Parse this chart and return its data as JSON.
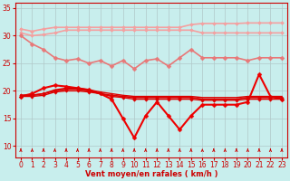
{
  "title": "",
  "xlabel": "Vent moyen/en rafales ( km/h )",
  "ylabel": "",
  "bg_color": "#c8eeed",
  "grid_color": "#b0c8c8",
  "xlim": [
    -0.5,
    23.5
  ],
  "ylim": [
    8,
    36
  ],
  "yticks": [
    10,
    15,
    20,
    25,
    30,
    35
  ],
  "xticks": [
    0,
    1,
    2,
    3,
    4,
    5,
    6,
    7,
    8,
    9,
    10,
    11,
    12,
    13,
    14,
    15,
    16,
    17,
    18,
    19,
    20,
    21,
    22,
    23
  ],
  "series": [
    {
      "name": "pink_top1",
      "color": "#f4a0a0",
      "lw": 1.2,
      "marker": "D",
      "ms": 2.0,
      "y": [
        31.2,
        30.8,
        31.2,
        31.5,
        31.5,
        31.5,
        31.5,
        31.5,
        31.5,
        31.5,
        31.5,
        31.5,
        31.5,
        31.5,
        31.5,
        32.0,
        32.2,
        32.2,
        32.2,
        32.2,
        32.3,
        32.3,
        32.3,
        32.3
      ]
    },
    {
      "name": "pink_top2",
      "color": "#f4a0a0",
      "lw": 1.2,
      "marker": "D",
      "ms": 2.0,
      "y": [
        30.5,
        30.0,
        30.2,
        30.5,
        31.0,
        31.0,
        31.0,
        31.0,
        31.0,
        31.0,
        31.0,
        31.0,
        31.0,
        31.0,
        31.0,
        31.0,
        30.5,
        30.5,
        30.5,
        30.5,
        30.5,
        30.5,
        30.5,
        30.5
      ]
    },
    {
      "name": "salmon_descending",
      "color": "#e87878",
      "lw": 1.2,
      "marker": "D",
      "ms": 2.5,
      "y": [
        30.0,
        28.5,
        27.5,
        26.0,
        25.5,
        25.8,
        25.0,
        25.5,
        24.5,
        25.5,
        24.0,
        25.5,
        25.8,
        24.5,
        26.0,
        27.5,
        26.0,
        26.0,
        26.0,
        26.0,
        25.5,
        26.0,
        26.0,
        26.0
      ]
    },
    {
      "name": "red_volatile",
      "color": "#ee0000",
      "lw": 1.5,
      "marker": "D",
      "ms": 2.5,
      "y": [
        19.0,
        19.5,
        20.5,
        21.0,
        20.8,
        20.5,
        20.2,
        19.5,
        18.5,
        15.0,
        11.5,
        15.5,
        18.0,
        15.5,
        13.0,
        15.5,
        17.5,
        17.5,
        17.5,
        17.5,
        18.0,
        23.0,
        19.0,
        18.5
      ]
    },
    {
      "name": "red_flat1",
      "color": "#dd0000",
      "lw": 1.2,
      "marker": "D",
      "ms": 1.8,
      "y": [
        19.2,
        19.2,
        19.5,
        20.0,
        20.3,
        20.3,
        20.0,
        19.5,
        19.2,
        19.0,
        18.8,
        18.8,
        18.8,
        18.8,
        18.8,
        18.8,
        18.5,
        18.5,
        18.5,
        18.5,
        18.8,
        18.8,
        18.8,
        18.8
      ]
    },
    {
      "name": "red_flat2",
      "color": "#dd0000",
      "lw": 1.0,
      "marker": "D",
      "ms": 1.8,
      "y": [
        19.0,
        19.0,
        19.2,
        19.8,
        20.0,
        20.0,
        19.8,
        19.5,
        19.0,
        18.8,
        18.5,
        18.5,
        18.5,
        18.5,
        18.5,
        18.5,
        18.3,
        18.3,
        18.3,
        18.3,
        18.5,
        18.5,
        18.5,
        18.5
      ]
    },
    {
      "name": "red_flat3",
      "color": "#dd0000",
      "lw": 1.0,
      "marker": null,
      "ms": 0,
      "y": [
        19.2,
        19.2,
        19.5,
        20.2,
        20.5,
        20.5,
        20.2,
        19.8,
        19.5,
        19.2,
        19.0,
        19.0,
        19.0,
        19.0,
        19.0,
        19.0,
        18.8,
        18.8,
        18.8,
        18.8,
        19.0,
        19.0,
        19.0,
        19.0
      ]
    }
  ],
  "wind_y": 9.0,
  "wind_color": "#cc0000"
}
